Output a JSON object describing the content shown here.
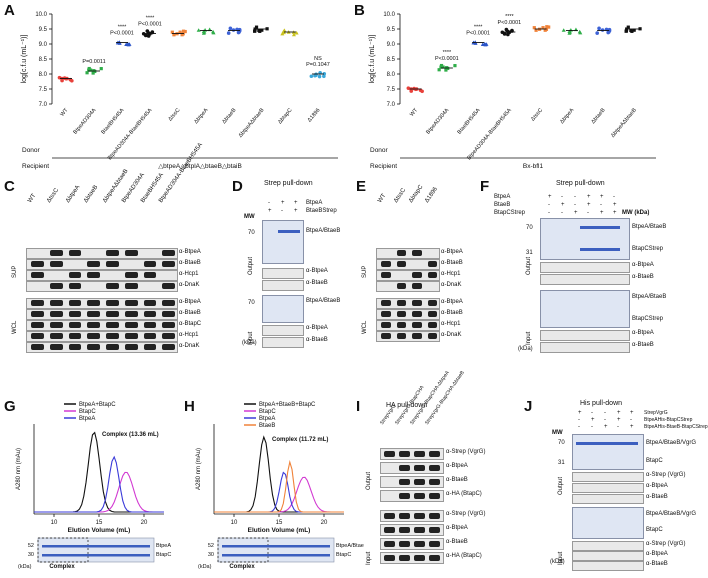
{
  "panels": {
    "A": {
      "label": "A"
    },
    "B": {
      "label": "B"
    },
    "C": {
      "label": "C"
    },
    "D": {
      "label": "D"
    },
    "E": {
      "label": "E"
    },
    "F": {
      "label": "F"
    },
    "G": {
      "label": "G"
    },
    "H": {
      "label": "H"
    },
    "I": {
      "label": "I"
    },
    "J": {
      "label": "J"
    }
  },
  "chart_data": [
    {
      "type": "scatter",
      "panel": "A",
      "ylabel": "log[c.f.u (mL⁻¹)]",
      "ylim": [
        7.0,
        10.0
      ],
      "yticks": [
        "7.0",
        "7.5",
        "8.0",
        "8.5",
        "9.0",
        "9.5",
        "10.0"
      ],
      "categories": [
        "WT",
        "BtpeA^D304A",
        "BtaeB^H545A",
        "BtpeA^D304A-BtaeB^H545A",
        "ΔtssC",
        "ΔbtpeA",
        "ΔbtaeB",
        "ΔbtpeAΔbtaeB",
        "ΔbtapC",
        "Δ1896"
      ],
      "colors": [
        "#e8413b",
        "#2fae49",
        "#2b55c9",
        "#111111",
        "#f0833a",
        "#2fae49",
        "#3d62d6",
        "#111111",
        "#c9c21f",
        "#3aa7d9"
      ],
      "means": [
        7.85,
        8.1,
        9.05,
        9.35,
        9.35,
        9.45,
        9.45,
        9.5,
        9.4,
        8.0
      ],
      "annotations": [
        {
          "index": 1,
          "text": "P=0.0011"
        },
        {
          "index": 2,
          "text": "P<0.0001",
          "stars": "****"
        },
        {
          "index": 3,
          "text": "P<0.0001",
          "stars": "****"
        },
        {
          "index": 9,
          "text": "P=0.1047",
          "stars": "NS"
        }
      ],
      "donor_label": "Donor",
      "recipient_label": "Recipient",
      "recipient": "△btpeA△btplA△btaeB△btaiB"
    },
    {
      "type": "scatter",
      "panel": "B",
      "ylabel": "log[c.f.u (mL⁻¹)]",
      "ylim": [
        7.0,
        10.0
      ],
      "yticks": [
        "7.0",
        "7.5",
        "8.0",
        "8.5",
        "9.0",
        "9.5",
        "10.0"
      ],
      "categories": [
        "WT",
        "BtpeA^D304A",
        "BtaeB^H545A",
        "BtpeA^D304A-BtaeB^H545A",
        "ΔtssC",
        "ΔbtpeA",
        "ΔbtaeB",
        "ΔbtpeAΔbtaeB"
      ],
      "colors": [
        "#e8413b",
        "#2fae49",
        "#2b55c9",
        "#111111",
        "#f0833a",
        "#2fae49",
        "#3d62d6",
        "#111111"
      ],
      "means": [
        7.5,
        8.2,
        9.05,
        9.4,
        9.5,
        9.45,
        9.45,
        9.5
      ],
      "annotations": [
        {
          "index": 1,
          "text": "P<0.0001",
          "stars": "****"
        },
        {
          "index": 2,
          "text": "P<0.0001",
          "stars": "****"
        },
        {
          "index": 3,
          "text": "P<0.0001",
          "stars": "****"
        }
      ],
      "donor_label": "Donor",
      "recipient_label": "Recipient",
      "recipient": "Bx-bfl1"
    },
    {
      "type": "line",
      "panel": "G",
      "ylabel": "A280 nm (mAu)",
      "xlabel": "Elution Volume (mL)",
      "xticks": [
        "10",
        "15",
        "20"
      ],
      "series": [
        {
          "name": "BtpeA+BtapC",
          "color": "#111111"
        },
        {
          "name": "BtapC",
          "color": "#d23bd2"
        },
        {
          "name": "BtpeA",
          "color": "#3a3ad9"
        }
      ],
      "annotation": "Complex (13.36 mL)",
      "gel_labels": [
        "BtpeA",
        "BtapC"
      ],
      "gel_mw": [
        "52",
        "30"
      ],
      "gel_caption": "Complex",
      "gel_unit": "(kDa)"
    },
    {
      "type": "line",
      "panel": "H",
      "ylabel": "A280 nm (mAu)",
      "xlabel": "Elution Volume (mL)",
      "xticks": [
        "10",
        "15",
        "20"
      ],
      "series": [
        {
          "name": "BtpeA+BtaeB+BtapC",
          "color": "#111111"
        },
        {
          "name": "BtapC",
          "color": "#d23bd2"
        },
        {
          "name": "BtpeA",
          "color": "#3a3ad9"
        },
        {
          "name": "BtaeB",
          "color": "#f0833a"
        }
      ],
      "annotation": "Complex (11.72 mL)",
      "gel_labels": [
        "BtpeA/BtaeB",
        "BtapC"
      ],
      "gel_mw": [
        "52",
        "30"
      ],
      "gel_caption": "Complex",
      "gel_unit": "(kDa)"
    }
  ],
  "blotC": {
    "lanes": [
      "WT",
      "ΔtssC",
      "ΔbtpeA",
      "ΔbtaeB",
      "ΔbtpeAΔbtaeB",
      "BtpeA^D304A",
      "BtaeB^H545A",
      "BtpeA^D304A-BtaeB^H545A"
    ],
    "sup_label": "SUP",
    "wcl_label": "WCL",
    "sup_rows": [
      "α-BtpeA",
      "α-BtaeB",
      "α-Hcp1",
      "α-DnaK"
    ],
    "wcl_rows": [
      "α-BtpeA",
      "α-BtaeB",
      "α-BtapC",
      "α-Hcp1",
      "α-DnaK"
    ]
  },
  "blotD": {
    "title": "Strep pull-down",
    "row1": "BtpeA",
    "row2": "BtaeB^Strep",
    "signs1": [
      "-",
      "+",
      "+"
    ],
    "signs2": [
      "+",
      "-",
      "+"
    ],
    "mw_label": "MW",
    "mw70": "70",
    "kda": "(kDa)",
    "output_label": "Output",
    "input_label": "Input",
    "right_labels": [
      "BtpeA/BtaeB",
      "α-BtpeA",
      "α-BtaeB",
      "BtpeA/BtaeB",
      "α-BtpeA",
      "α-BtaeB"
    ]
  },
  "blotE": {
    "lanes": [
      "WT",
      "ΔtssC",
      "ΔbtapC",
      "Δ1896"
    ],
    "sup_label": "SUP",
    "wcl_label": "WCL",
    "sup_rows": [
      "α-BtpeA",
      "α-BtaeB",
      "α-Hcp1",
      "α-DnaK"
    ],
    "wcl_rows": [
      "α-BtpeA",
      "α-BtaeB",
      "α-Hcp1",
      "α-DnaK"
    ]
  },
  "blotF": {
    "title": "Strep pull-down",
    "rows": [
      "BtpeA",
      "BtaeB",
      "BtapC^Strep"
    ],
    "signs": [
      [
        "+",
        "-",
        "-",
        "+",
        "+",
        "-"
      ],
      [
        "-",
        "+",
        "-",
        "+",
        "-",
        "+"
      ],
      [
        "-",
        "-",
        "+",
        "-",
        "+",
        "+"
      ]
    ],
    "mw_label": "MW (kDa)",
    "mw70": "70",
    "mw31": "31",
    "kda": "(kDa)",
    "output_label": "Output",
    "input_label": "Input",
    "right_labels": [
      "BtpeA/BtaeB",
      "BtapC^Strep",
      "α-BtpeA",
      "α-BtaeB",
      "BtpeA/BtaeB",
      "BtapC^Strep",
      "α-BtpeA",
      "α-BtaeB"
    ]
  },
  "blotI": {
    "title": "HA pull-down",
    "lanes": [
      "StrepVgrG",
      "StrepVgrG-BtapC^HA",
      "StrepVgrG-BtapC^HA-ΔbtpeA",
      "StrepVgrG-BtapC^HA-ΔbtaeB"
    ],
    "output_label": "Output",
    "input_label": "Input",
    "rows": [
      "α-Strep (VgrG)",
      "α-BtpeA",
      "α-BtaeB",
      "α-HA (BtapC)",
      "α-Strep (VgrG)",
      "α-BtpeA",
      "α-BtaeB",
      "α-HA (BtapC)"
    ]
  },
  "blotJ": {
    "title": "His pull-down",
    "rows": [
      "StrepVgrG",
      "BtpeA^His-BtapC^Strep",
      "BtpeA^His-BtaeB-BtapC^Strep"
    ],
    "signs": [
      [
        "+",
        "-",
        "-",
        "+",
        "+"
      ],
      [
        "-",
        "+",
        "-",
        "+",
        "-"
      ],
      [
        "-",
        "-",
        "+",
        "-",
        "+"
      ]
    ],
    "mw_label": "MW",
    "mw70": "70",
    "mw31": "31",
    "kda": "(kDa)",
    "output_label": "Output",
    "input_label": "Input",
    "right_labels": [
      "BtpeA/BtaeB/VgrG",
      "BtapC",
      "α-Strep (VgrG)",
      "α-BtpeA",
      "α-BtaeB",
      "BtpeA/BtaeB/VgrG",
      "BtapC",
      "α-Strep (VgrG)",
      "α-BtpeA",
      "α-BtaeB"
    ]
  }
}
